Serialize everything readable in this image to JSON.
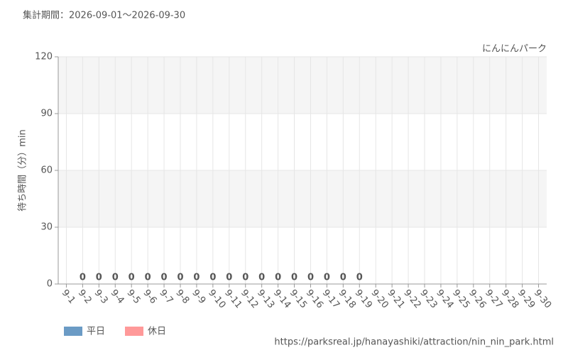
{
  "chart_data": {
    "type": "bar",
    "title": "集計期間：2026-09-01～2026-09-30",
    "subtitle": "にんにんパーク",
    "y_label": "待ち時間（分）min",
    "source": "https://parksreal.jp/hanayashiki/attraction/nin_nin_park.html",
    "categories": [
      "9-1",
      "9-2",
      "9-3",
      "9-4",
      "9-5",
      "9-6",
      "9-7",
      "9-8",
      "9-9",
      "9-10",
      "9-11",
      "9-12",
      "9-13",
      "9-14",
      "9-15",
      "9-16",
      "9-17",
      "9-18",
      "9-19",
      "9-20",
      "9-21",
      "9-22",
      "9-23",
      "9-24",
      "9-25",
      "9-26",
      "9-27",
      "9-28",
      "9-29",
      "9-30"
    ],
    "x_label_colors": [
      "#555555",
      "#555555",
      "#555555",
      "#555555",
      "#ff8888",
      "#ff8888",
      "#555555",
      "#555555",
      "#555555",
      "#555555",
      "#555555",
      "#ff8888",
      "#ff8888",
      "#555555",
      "#555555",
      "#555555",
      "#555555",
      "#555555",
      "#ff8888",
      "#ff8888",
      "#ff8888",
      "#ff8888",
      "#ff8888",
      "#555555",
      "#555555",
      "#ff8888",
      "#ff8888",
      "#555555",
      "#555555",
      "#555555"
    ],
    "series": [
      {
        "name": "平日",
        "color": "#6b9bc5",
        "values": [
          null,
          0,
          0,
          0,
          null,
          null,
          0,
          0,
          0,
          0,
          0,
          null,
          null,
          0,
          0,
          0,
          0,
          0,
          null,
          null,
          null,
          null,
          null,
          null,
          null,
          null,
          null,
          null,
          null,
          null
        ]
      },
      {
        "name": "休日",
        "color": "#ff9999",
        "values": [
          null,
          null,
          null,
          null,
          0,
          0,
          null,
          null,
          null,
          null,
          null,
          0,
          0,
          null,
          null,
          null,
          null,
          null,
          0,
          null,
          null,
          null,
          null,
          null,
          null,
          null,
          null,
          null,
          null,
          null
        ]
      }
    ],
    "ylim": [
      0,
      120
    ],
    "yticks": [
      0,
      30,
      60,
      90,
      120
    ],
    "grid": true
  }
}
